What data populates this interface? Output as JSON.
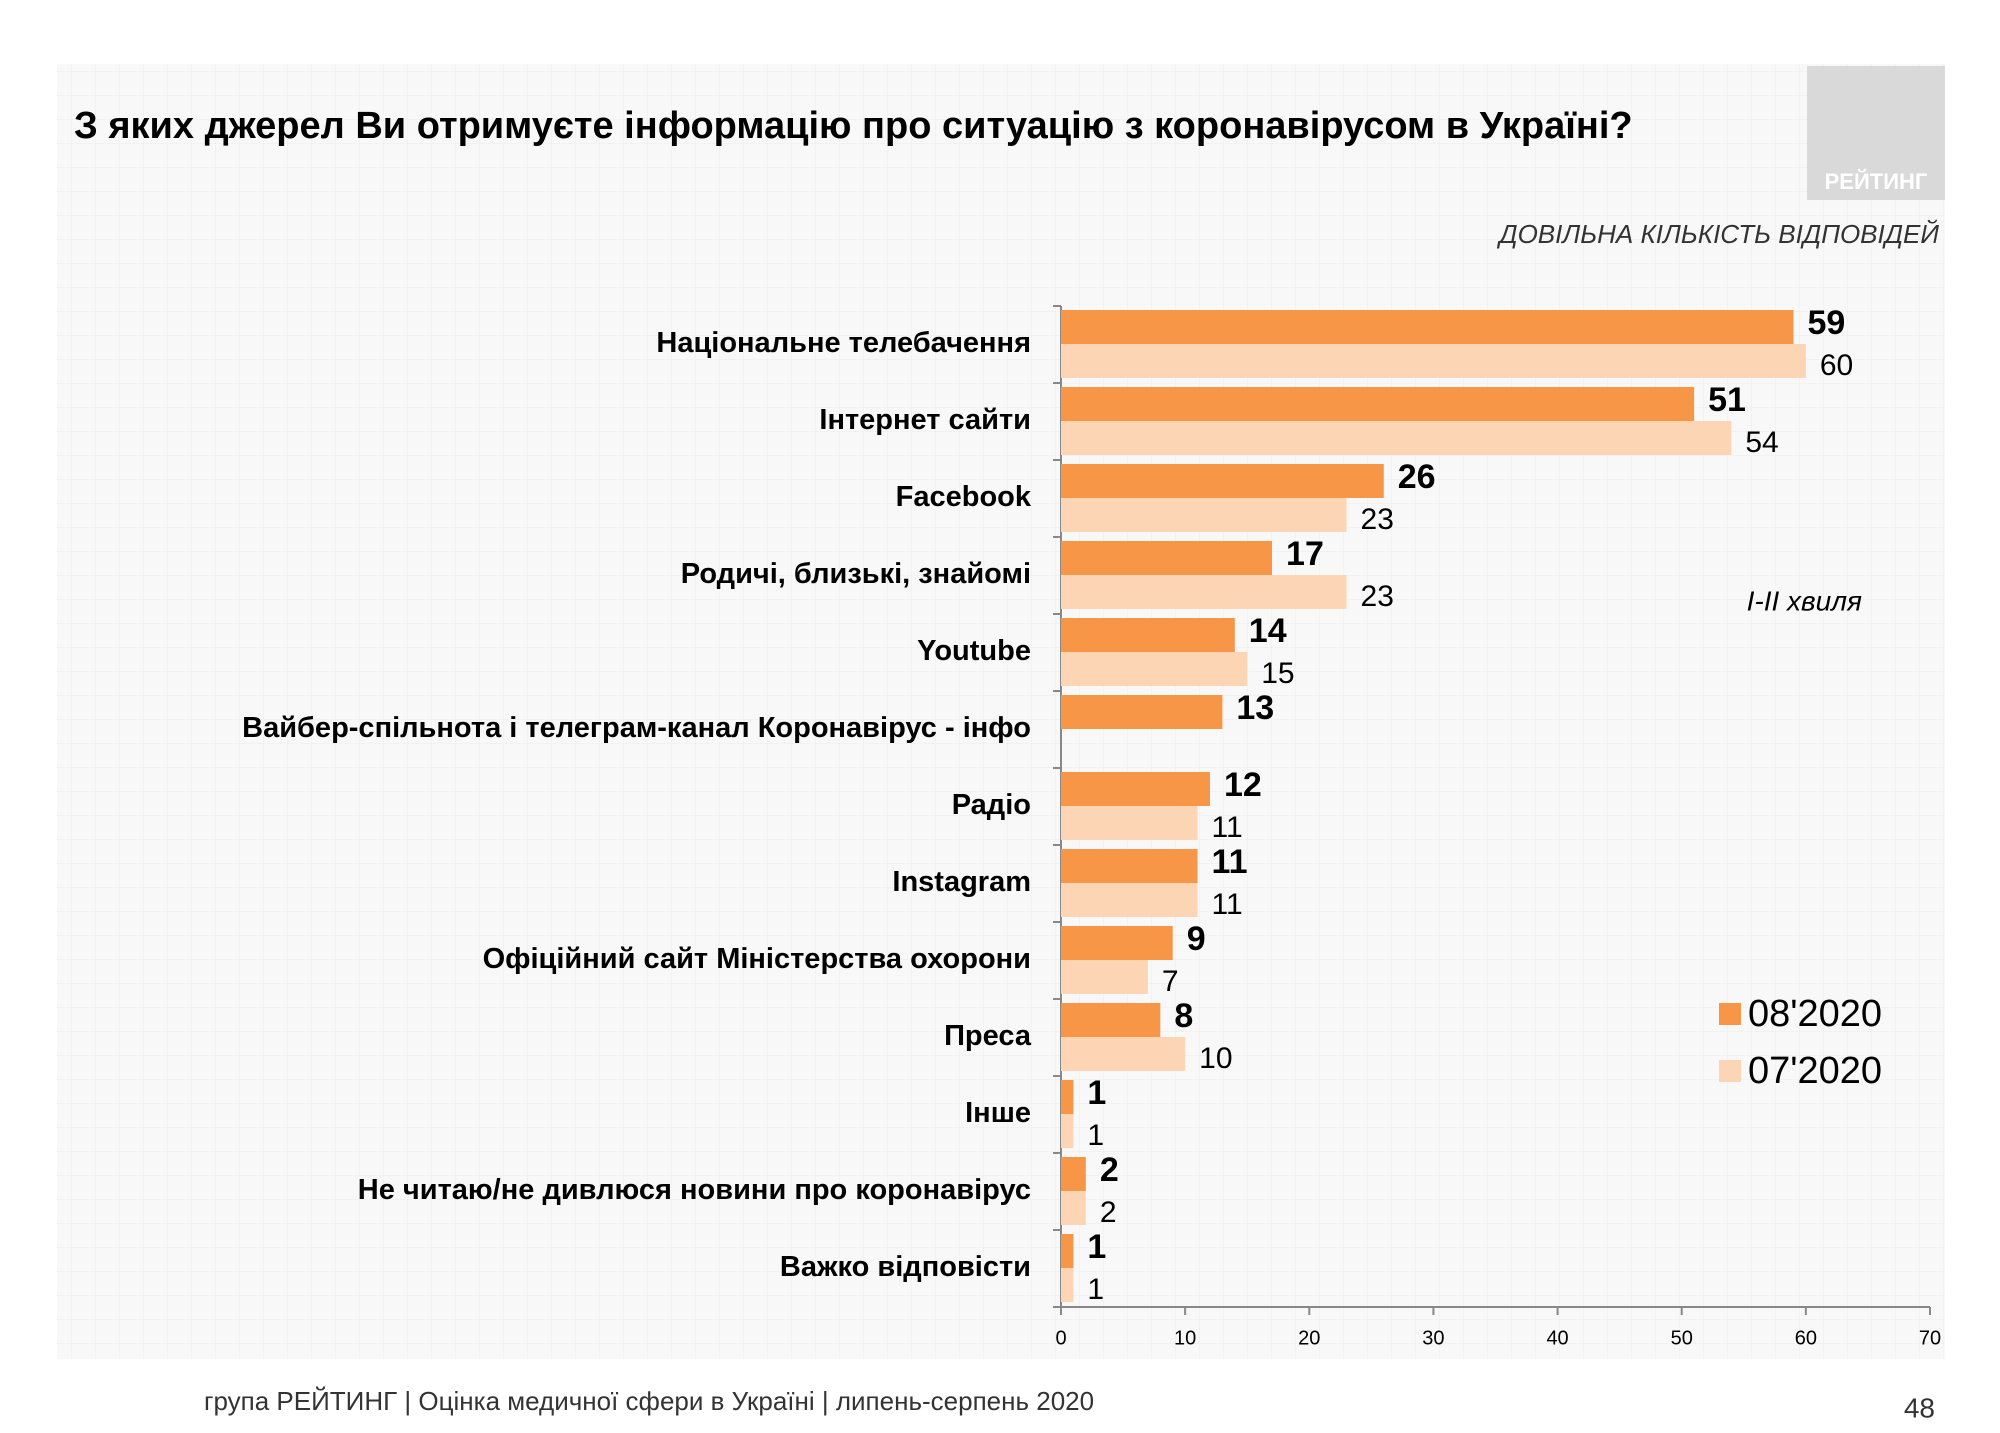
{
  "chart_data": {
    "type": "bar",
    "orientation": "horizontal",
    "title": "З яких джерел Ви отримуєте інформацію про ситуацію з коронавірусом в Україні?",
    "subtitle": "ДОВІЛЬНА КІЛЬКІСТЬ ВІДПОВІДЕЙ",
    "annotation": "I-II хвиля",
    "logo": "РЕЙТИНГ",
    "footer": "група РЕЙТИНГ  |  Оцінка медичної сфери в Україні  | липень-серпень 2020",
    "page_number": "48",
    "categories": [
      "Національне телебачення",
      "Інтернет сайти",
      "Facebook",
      "Родичі, близькі, знайомі",
      "Youtube",
      "Вайбер-спільнота і телеграм-канал Коронавірус - інфо",
      "Радіо",
      "Instagram",
      "Офіційний сайт Міністерства охорони",
      "Преса",
      "Інше",
      "Не читаю/не дивлюся новини про коронавірус",
      "Важко відповісти"
    ],
    "series": [
      {
        "name": "08'2020",
        "color": "#f79646",
        "values": [
          59,
          51,
          26,
          17,
          14,
          13,
          12,
          11,
          9,
          8,
          1,
          2,
          1
        ]
      },
      {
        "name": "07'2020",
        "color": "#fcd5b5",
        "values": [
          60,
          54,
          23,
          23,
          15,
          null,
          11,
          11,
          7,
          10,
          1,
          2,
          1
        ]
      }
    ],
    "xlim": [
      0,
      70
    ],
    "xticks": [
      0,
      10,
      20,
      30,
      40,
      50,
      60,
      70
    ],
    "legend": "right"
  }
}
